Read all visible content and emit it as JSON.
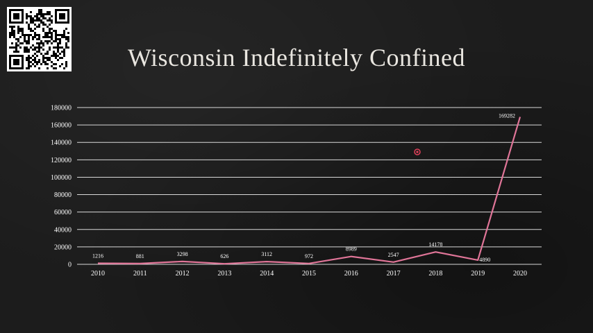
{
  "title": "Wisconsin Indefinitely Confined",
  "qr_code_icon": "qr-code-icon",
  "chart_data": {
    "type": "line",
    "title": "Wisconsin Indefinitely Confined",
    "xlabel": "",
    "ylabel": "",
    "categories": [
      "2010",
      "2011",
      "2012",
      "2013",
      "2014",
      "2015",
      "2016",
      "2017",
      "2018",
      "2019",
      "2020"
    ],
    "series": [
      {
        "values": [
          1216,
          881,
          3298,
          626,
          3112,
          972,
          8989,
          2547,
          14178,
          4890,
          169282
        ],
        "color": "#e07598"
      }
    ],
    "data_labels": [
      "1216",
      "881",
      "3298",
      "626",
      "3112",
      "972",
      "8989",
      "2547",
      "14178",
      "4890",
      "169282"
    ],
    "y_ticks": [
      "0",
      "20000",
      "40000",
      "60000",
      "80000",
      "100000",
      "120000",
      "140000",
      "160000",
      "180000"
    ],
    "ylim": [
      0,
      180000
    ],
    "grid": true,
    "legend": "none"
  },
  "colors": {
    "background": "#1c1c1c",
    "gridline": "#d9d9d9",
    "line": "#e07598",
    "text": "#ffffff",
    "marker": "#e0405a"
  }
}
